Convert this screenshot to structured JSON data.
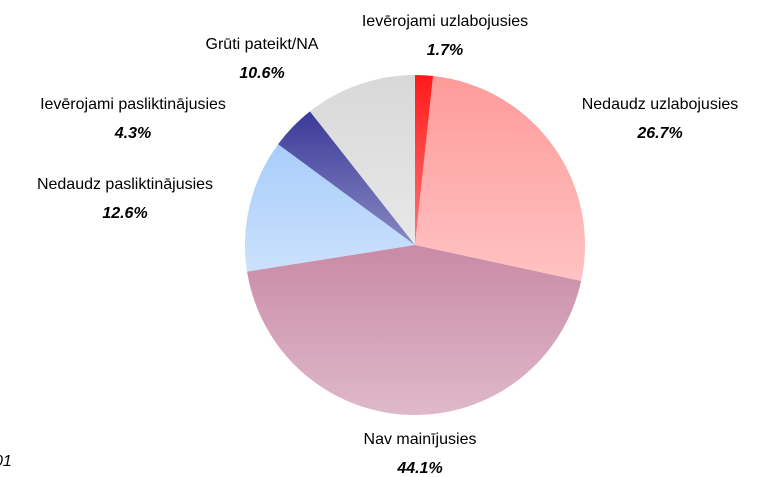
{
  "chart_data": {
    "type": "pie",
    "categories": [
      "Ievērojami uzlabojusies",
      "Nedaudz uzlabojusies",
      "Nav mainījusies",
      "Nedaudz pasliktinājusies",
      "Ievērojami pasliktinājusies",
      "Grūti pateikt/NA"
    ],
    "values": [
      1.7,
      26.7,
      44.1,
      12.6,
      4.3,
      10.6
    ],
    "value_labels": [
      "1.7%",
      "26.7%",
      "44.1%",
      "12.6%",
      "4.3%",
      "10.6%"
    ],
    "colors": [
      "#ff1a1a",
      "#ff9a9a",
      "#c98aa6",
      "#a8cdfa",
      "#3a3a9a",
      "#d8d8d8"
    ],
    "annotation": "01"
  }
}
